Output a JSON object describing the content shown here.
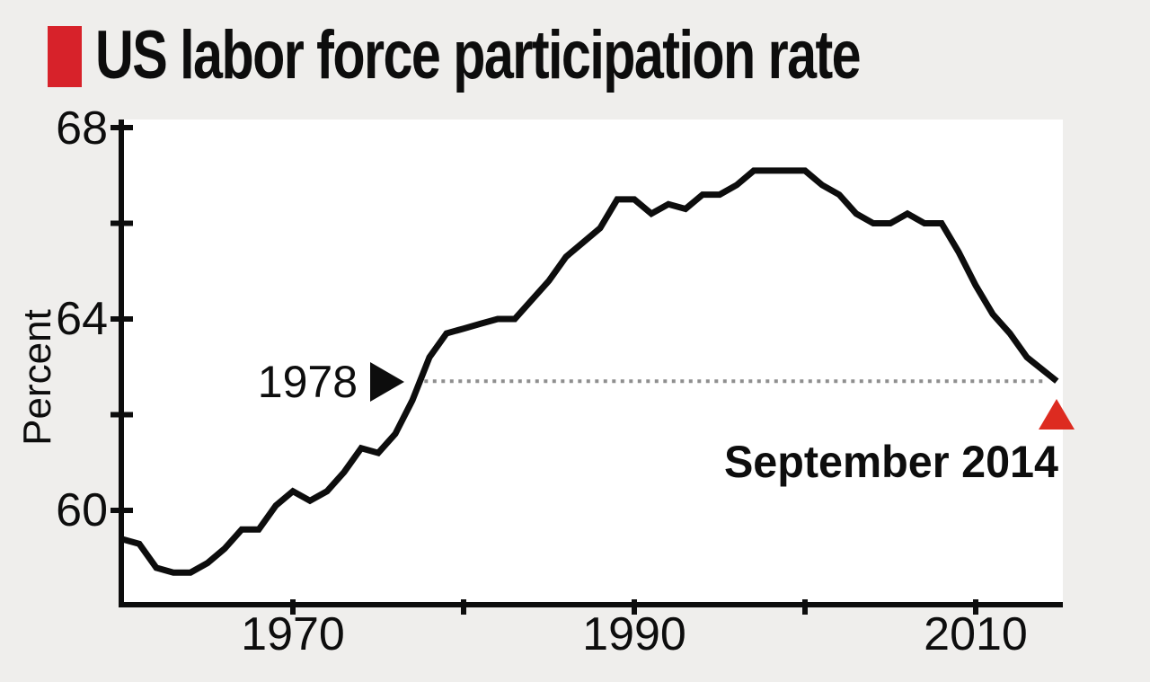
{
  "header": {
    "title": "US labor force participation rate",
    "accent_color": "#d7222a"
  },
  "chart_data": {
    "type": "line",
    "title": "US labor force participation rate",
    "ylabel": "Percent",
    "xlabel": "",
    "x": [
      1960,
      1961,
      1962,
      1963,
      1964,
      1965,
      1966,
      1967,
      1968,
      1969,
      1970,
      1971,
      1972,
      1973,
      1974,
      1975,
      1976,
      1977,
      1978,
      1979,
      1980,
      1981,
      1982,
      1983,
      1984,
      1985,
      1986,
      1987,
      1988,
      1989,
      1990,
      1991,
      1992,
      1993,
      1994,
      1995,
      1996,
      1997,
      1998,
      1999,
      2000,
      2001,
      2002,
      2003,
      2004,
      2005,
      2006,
      2007,
      2008,
      2009,
      2010,
      2011,
      2012,
      2013,
      2014.75
    ],
    "series": [
      {
        "name": "US labor force participation rate (percent)",
        "values": [
          59.4,
          59.3,
          58.8,
          58.7,
          58.7,
          58.9,
          59.2,
          59.6,
          59.6,
          60.1,
          60.4,
          60.2,
          60.4,
          60.8,
          61.3,
          61.2,
          61.6,
          62.3,
          63.2,
          63.7,
          63.8,
          63.9,
          64.0,
          64.0,
          64.4,
          64.8,
          65.3,
          65.6,
          65.9,
          66.5,
          66.5,
          66.2,
          66.4,
          66.3,
          66.6,
          66.6,
          66.8,
          67.1,
          67.1,
          67.1,
          67.1,
          66.8,
          66.6,
          66.2,
          66.0,
          66.0,
          66.2,
          66.0,
          66.0,
          65.4,
          64.7,
          64.1,
          63.7,
          63.2,
          62.7
        ]
      }
    ],
    "x_axis": {
      "range": [
        1960,
        2015
      ],
      "tick_years": [
        1970,
        1980,
        1990,
        2000,
        2010
      ],
      "labels": [
        {
          "text": "1970",
          "year": 1970
        },
        {
          "text": "1990",
          "year": 1990
        },
        {
          "text": "2010",
          "year": 2010
        }
      ]
    },
    "y_axis": {
      "range": [
        58,
        68.2
      ],
      "tick_values": [
        68,
        66,
        64,
        62,
        60
      ],
      "labels": [
        {
          "text": "68",
          "value": 68
        },
        {
          "text": "64",
          "value": 64
        },
        {
          "text": "60",
          "value": 60
        }
      ]
    },
    "grid": false,
    "legend_position": "none",
    "line_color": "#0d0d0d",
    "plot_background": "#ffffff",
    "page_background": "#efeeec",
    "reference_line": {
      "style": "dotted",
      "color": "#8f8f8f",
      "value": 62.7,
      "from_year": 1977.7,
      "to_year": 2014.2
    },
    "annotations": [
      {
        "id": "year-1978",
        "text": "1978",
        "icon": "right-arrow",
        "color": "#0d0d0d",
        "points_at": {
          "year": 1978,
          "value": 62.7
        }
      },
      {
        "id": "september-2014",
        "text": "September 2014",
        "icon": "up-triangle",
        "color": "#dd2b20",
        "points_at": {
          "year": 2014.75,
          "value": 62.7
        }
      }
    ]
  }
}
